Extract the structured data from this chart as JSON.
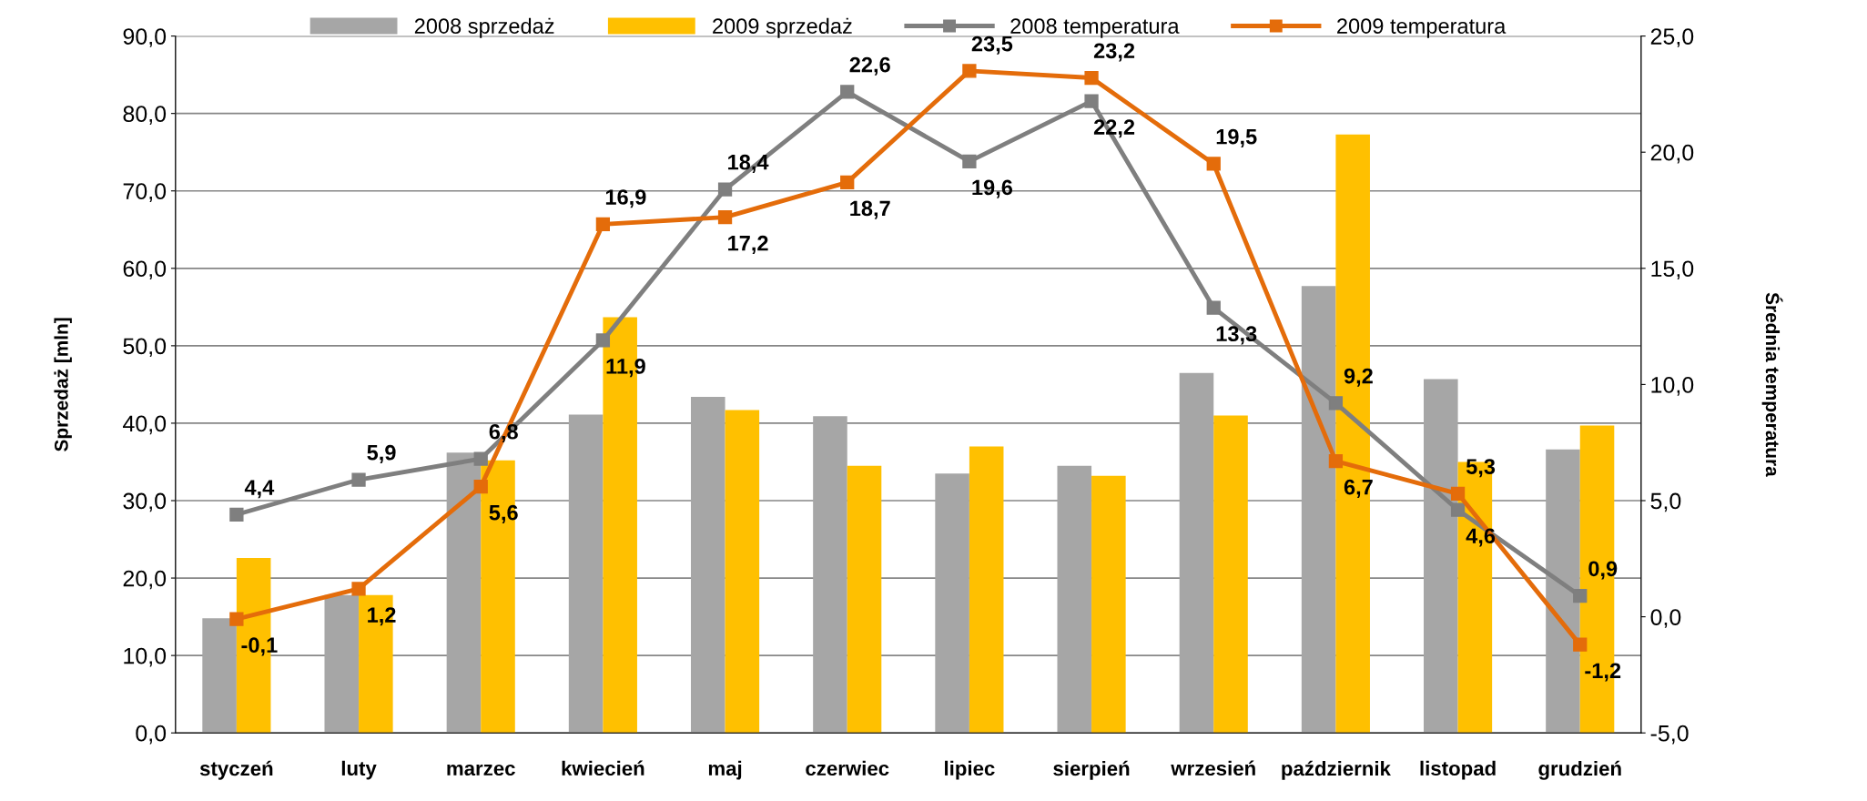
{
  "chart_data": {
    "type": "bar",
    "categories": [
      "styczeń",
      "luty",
      "marzec",
      "kwiecień",
      "maj",
      "czerwiec",
      "lipiec",
      "sierpień",
      "wrzesień",
      "październik",
      "listopad",
      "grudzień"
    ],
    "ylabel": "Sprzedaż [mln]",
    "y2label": "Średnia temperatura",
    "ylim": [
      0,
      90
    ],
    "yticks": [
      {
        "value": 0,
        "label": "0,0"
      },
      {
        "value": 10,
        "label": "10,0"
      },
      {
        "value": 20,
        "label": "20,0"
      },
      {
        "value": 30,
        "label": "30,0"
      },
      {
        "value": 40,
        "label": "40,0"
      },
      {
        "value": 50,
        "label": "50,0"
      },
      {
        "value": 60,
        "label": "60,0"
      },
      {
        "value": 70,
        "label": "70,0"
      },
      {
        "value": 80,
        "label": "80,0"
      },
      {
        "value": 90,
        "label": "90,0"
      }
    ],
    "y2lim": [
      -5,
      25
    ],
    "y2ticks": [
      {
        "value": -5,
        "label": "-5,0"
      },
      {
        "value": 0,
        "label": "0,0"
      },
      {
        "value": 5,
        "label": "5,0"
      },
      {
        "value": 10,
        "label": "10,0"
      },
      {
        "value": 15,
        "label": "15,0"
      },
      {
        "value": 20,
        "label": "20,0"
      },
      {
        "value": 25,
        "label": "25,0"
      }
    ],
    "grid": "y",
    "legend": "top",
    "marker": "square",
    "series": [
      {
        "name": "2008 sprzedaż",
        "type": "bar",
        "color": "#a6a6a6",
        "values": [
          14.8,
          17.8,
          36.2,
          41.1,
          43.4,
          40.9,
          33.5,
          34.5,
          46.5,
          57.7,
          45.7,
          36.6
        ]
      },
      {
        "name": "2009 sprzedaż",
        "type": "bar",
        "color": "#ffc000",
        "values": [
          22.6,
          17.8,
          35.2,
          53.7,
          41.7,
          34.5,
          37.0,
          33.2,
          41.0,
          77.3,
          35.0,
          39.7
        ]
      },
      {
        "name": "2008 temperatura",
        "type": "line",
        "axis": "y2",
        "color": "#7f7f7f",
        "values": [
          4.4,
          5.9,
          6.8,
          11.9,
          18.4,
          22.6,
          19.6,
          22.2,
          13.3,
          9.2,
          4.6,
          0.9
        ],
        "value_labels": [
          "4,4",
          "5,9",
          "6,8",
          "11,9",
          "18,4",
          "22,6",
          "19,6",
          "22,2",
          "13,3",
          "9,2",
          "4,6",
          "0,9"
        ]
      },
      {
        "name": "2009 temperatura",
        "type": "line",
        "axis": "y2",
        "color": "#e46c0a",
        "values": [
          -0.1,
          1.2,
          5.6,
          16.9,
          17.2,
          18.7,
          23.5,
          23.2,
          19.5,
          6.7,
          5.3,
          -1.2
        ],
        "value_labels": [
          "-0,1",
          "1,2",
          "5,6",
          "16,9",
          "17,2",
          "18,7",
          "23,5",
          "23,2",
          "19,5",
          "6,7",
          "5,3",
          "-1,2"
        ]
      }
    ]
  }
}
